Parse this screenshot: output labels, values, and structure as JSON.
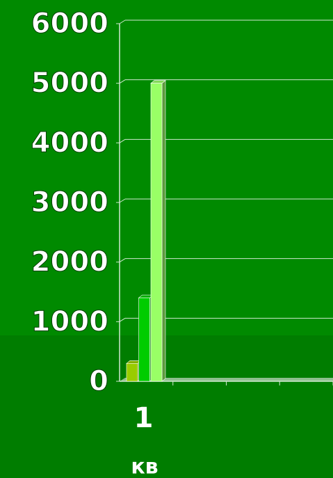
{
  "chart_data": {
    "type": "bar3d",
    "categories": [
      "1",
      null,
      null,
      null
    ],
    "series": [
      {
        "color": "#99cc00",
        "values": [
          300,
          null,
          null,
          null
        ]
      },
      {
        "color": "#00cc00",
        "values": [
          1400,
          null,
          null,
          null
        ]
      },
      {
        "color": "#99ff66",
        "values": [
          5000,
          null,
          null,
          null
        ]
      }
    ],
    "xlabel": "кв",
    "ylim": [
      0,
      6000
    ],
    "yticks": [
      0,
      1000,
      2000,
      3000,
      4000,
      5000,
      6000
    ],
    "grid": true
  }
}
